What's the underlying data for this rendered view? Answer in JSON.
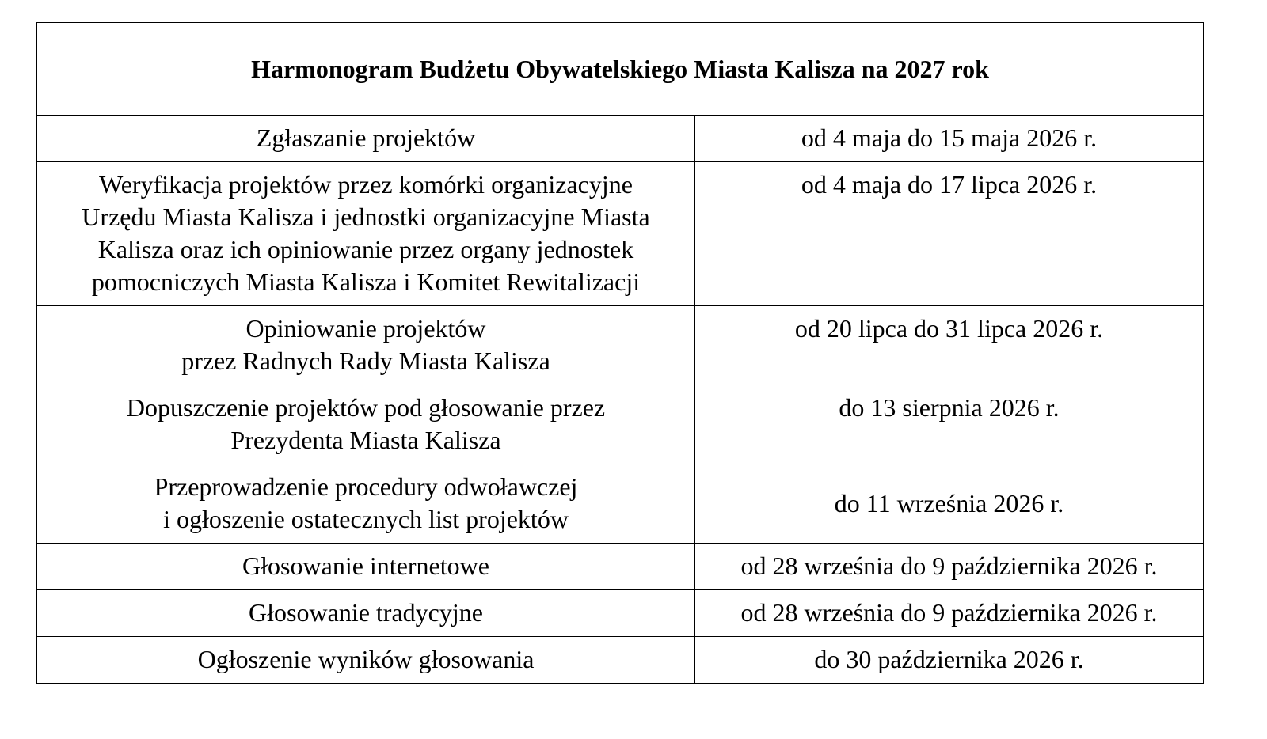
{
  "title": "Harmonogram Budżetu Obywatelskiego Miasta Kalisza na 2027 rok",
  "rows": [
    {
      "stage": [
        "Zgłaszanie projektów"
      ],
      "date": "od 4 maja do 15 maja 2026 r."
    },
    {
      "stage": [
        "Weryfikacja projektów przez komórki organizacyjne",
        "Urzędu Miasta Kalisza i jednostki organizacyjne Miasta",
        "Kalisza oraz ich opiniowanie przez organy jednostek",
        "pomocniczych Miasta Kalisza i Komitet Rewitalizacji"
      ],
      "date": "od 4 maja do 17 lipca 2026 r."
    },
    {
      "stage": [
        "Opiniowanie projektów",
        "przez Radnych Rady Miasta Kalisza"
      ],
      "date": "od 20 lipca do 31 lipca 2026 r."
    },
    {
      "stage": [
        "Dopuszczenie projektów pod głosowanie przez",
        "Prezydenta Miasta Kalisza"
      ],
      "date": "do 13 sierpnia 2026 r."
    },
    {
      "stage": [
        "Przeprowadzenie procedury odwoławczej",
        "i ogłoszenie ostatecznych list projektów"
      ],
      "date": "do 11 września 2026 r."
    },
    {
      "stage": [
        "Głosowanie internetowe"
      ],
      "date": "od 28 września do 9 października 2026 r."
    },
    {
      "stage": [
        "Głosowanie tradycyjne"
      ],
      "date": "od 28 września do 9 października 2026 r."
    },
    {
      "stage": [
        "Ogłoszenie wyników głosowania"
      ],
      "date": "do 30 października 2026 r."
    }
  ]
}
